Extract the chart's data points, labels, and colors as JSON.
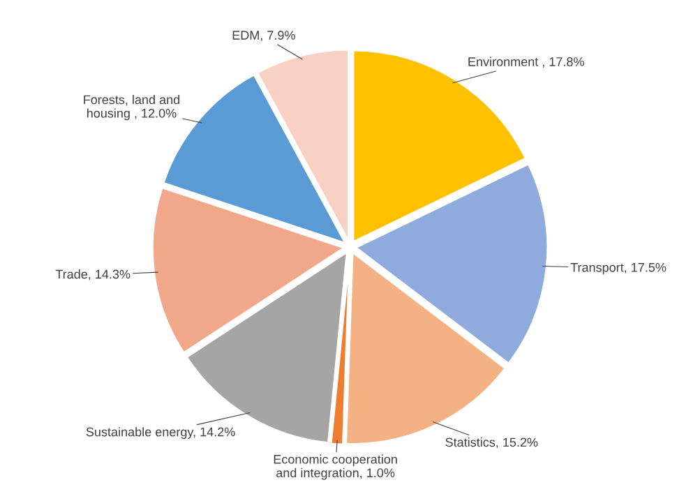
{
  "chart_data": {
    "type": "pie",
    "categories": [
      "Environment ",
      "Transport",
      "Statistics",
      "Economic cooperation and integration",
      "Sustainable energy",
      "Trade",
      "Forests, land and housing ",
      "EDM"
    ],
    "values": [
      17.8,
      17.5,
      15.2,
      1.0,
      14.2,
      14.3,
      12.0,
      7.9
    ],
    "value_labels": [
      "17.8%",
      "17.5%",
      "15.2%",
      "1.0%",
      "14.2%",
      "14.3%",
      "12.0%",
      "7.9%"
    ],
    "colors": [
      "#ffc000",
      "#8faadc",
      "#f4b183",
      "#ed7d31",
      "#a5a5a5",
      "#f1a88a",
      "#5b9bd5",
      "#f8d0c4"
    ]
  }
}
